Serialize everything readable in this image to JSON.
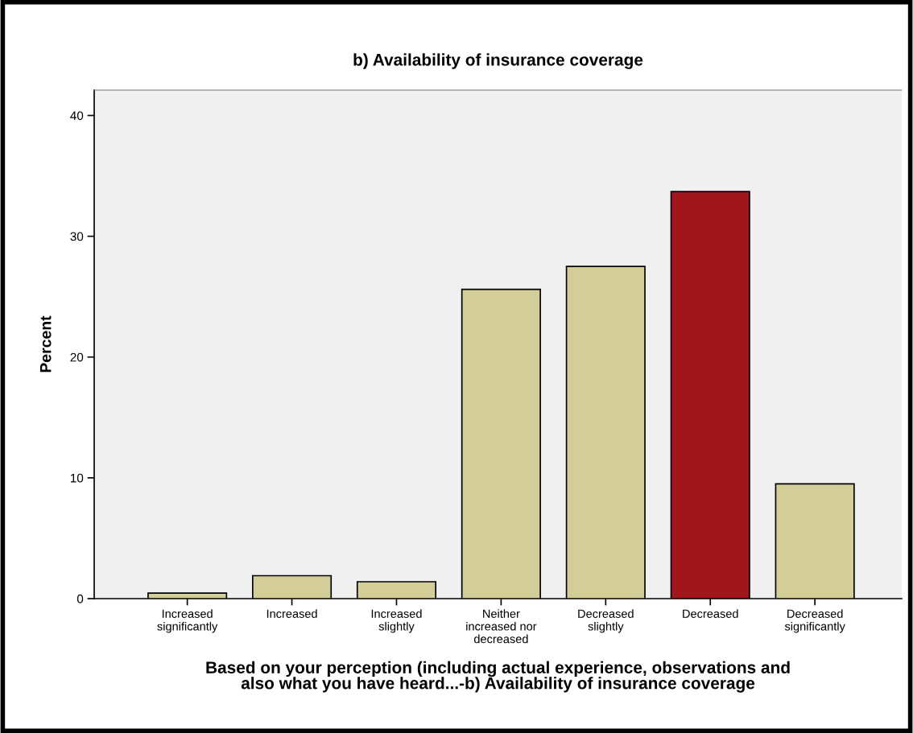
{
  "chart_data": {
    "type": "bar",
    "title": "b) Availability of insurance coverage",
    "xlabel": "Based on your perception (including actual experience, observations and\nalso what you have heard...-b) Availability of insurance coverage",
    "ylabel": "Percent",
    "categories": [
      "Increased\nsignificantly",
      "Increased",
      "Increased\nslightly",
      "Neither\nincreased nor\ndecreased",
      "Decreased\nslightly",
      "Decreased",
      "Decreased\nsignificantly"
    ],
    "values": [
      0.46,
      1.9,
      1.4,
      25.6,
      27.5,
      33.7,
      9.5
    ],
    "colors": [
      "#d3ce97",
      "#d3ce97",
      "#d3ce97",
      "#d3ce97",
      "#d3ce97",
      "#a0161b",
      "#d3ce97"
    ],
    "ylim": [
      0,
      42.1
    ],
    "yticks": [
      0,
      10,
      20,
      30,
      40
    ],
    "grid": false
  }
}
